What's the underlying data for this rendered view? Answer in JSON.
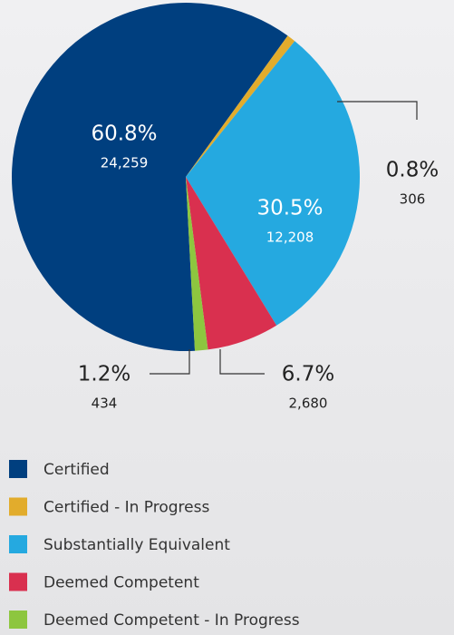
{
  "chart_data": {
    "type": "pie",
    "categories": [
      "Certified",
      "Certified - In Progress",
      "Substantially Equivalent",
      "Deemed Competent",
      "Deemed Competent - In Progress"
    ],
    "values": [
      60.8,
      0.8,
      30.5,
      6.7,
      1.2
    ],
    "value_labels": [
      "60.8%",
      "0.8%",
      "30.5%",
      "6.7%",
      "1.2%"
    ],
    "counts": [
      24259,
      306,
      12208,
      2680,
      434
    ],
    "count_labels": [
      "24,259",
      "306",
      "12,208",
      "2,680",
      "434"
    ],
    "colors": [
      "#003f7f",
      "#e2ac2c",
      "#25a9e0",
      "#d9304f",
      "#8dc63f"
    ]
  }
}
